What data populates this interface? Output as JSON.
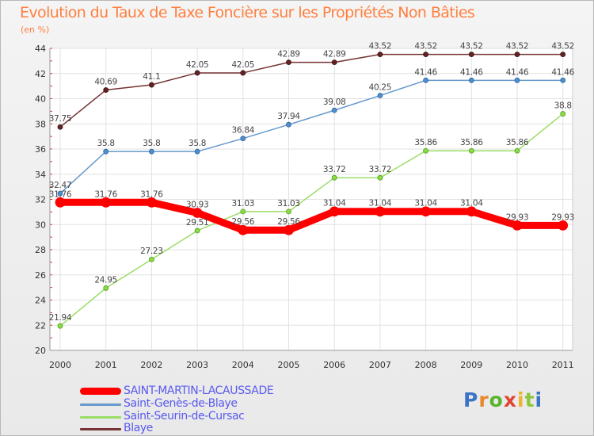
{
  "header": {
    "title": "Evolution du Taux de Taxe Foncière sur les Propriétés Non Bâties",
    "unit": "(en %)"
  },
  "brand": {
    "logo": "Proxiti"
  },
  "chart_data": {
    "type": "line",
    "x": [
      "2000",
      "2001",
      "2002",
      "2003",
      "2004",
      "2005",
      "2006",
      "2007",
      "2008",
      "2009",
      "2010",
      "2011"
    ],
    "ylim": [
      20,
      44
    ],
    "yticks": [
      20,
      22,
      24,
      26,
      28,
      30,
      32,
      34,
      36,
      38,
      40,
      42,
      44
    ],
    "grid": true,
    "legend_position": "bottom-left",
    "series": [
      {
        "name": "SAINT-MARTIN-LACAUSSADE",
        "color": "#ff0000",
        "values": [
          31.76,
          31.76,
          31.76,
          30.93,
          29.56,
          29.56,
          31.04,
          31.04,
          31.04,
          31.04,
          29.93,
          29.93
        ],
        "labels": [
          "31.76",
          "31.76",
          "31.76",
          "30.93",
          "29.56",
          "29.56",
          "31.04",
          "31.04",
          "31.04",
          "31.04",
          "29.93",
          "29.93"
        ]
      },
      {
        "name": "Saint-Genès-de-Blaye",
        "color": "#6699cc",
        "values": [
          32.47,
          35.8,
          35.8,
          35.8,
          36.84,
          37.94,
          39.08,
          40.25,
          41.46,
          41.46,
          41.46,
          41.46
        ],
        "labels": [
          "32.47",
          "35.8",
          "35.8",
          "35.8",
          "36.84",
          "37.94",
          "39.08",
          "40.25",
          "41.46",
          "41.46",
          "41.46",
          "41.46"
        ]
      },
      {
        "name": "Saint-Seurin-de-Cursac",
        "color": "#99dd66",
        "values": [
          21.94,
          24.95,
          27.23,
          29.51,
          31.03,
          31.03,
          33.72,
          33.72,
          35.86,
          35.86,
          35.86,
          38.8
        ],
        "labels": [
          "21.94",
          "24.95",
          "27.23",
          "29.51",
          "31.03",
          "31.03",
          "33.72",
          "33.72",
          "35.86",
          "35.86",
          "35.86",
          "38.8"
        ]
      },
      {
        "name": "Blaye",
        "color": "#773333",
        "values": [
          37.75,
          40.69,
          41.1,
          42.05,
          42.05,
          42.89,
          42.89,
          43.52,
          43.52,
          43.52,
          43.52,
          43.52
        ],
        "labels": [
          "37.75",
          "40.69",
          "41.1",
          "42.05",
          "42.05",
          "42.89",
          "42.89",
          "43.52",
          "43.52",
          "43.52",
          "43.52",
          "43.52"
        ]
      }
    ]
  }
}
